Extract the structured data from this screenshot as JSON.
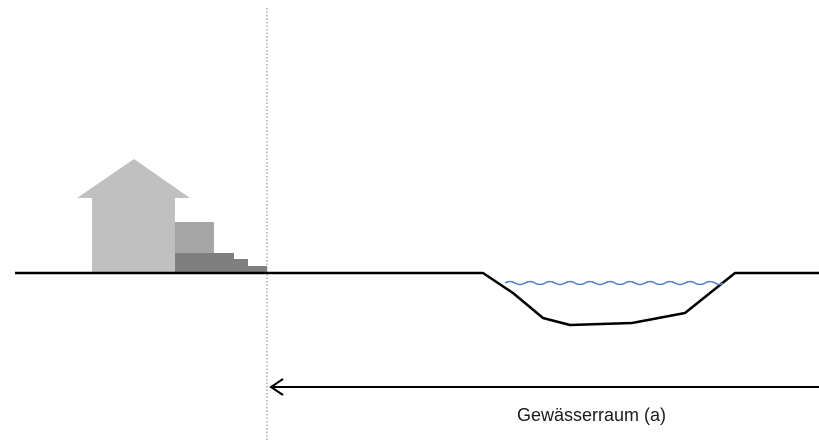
{
  "diagram": {
    "label": "Gewässerraum (a)",
    "colors": {
      "house_light": "#c0c0c0",
      "house_medium": "#a6a6a6",
      "house_dark": "#7f7f7f",
      "ground": "#000000",
      "water": "#4f81bd",
      "divider": "#808080",
      "arrow": "#000000"
    }
  }
}
